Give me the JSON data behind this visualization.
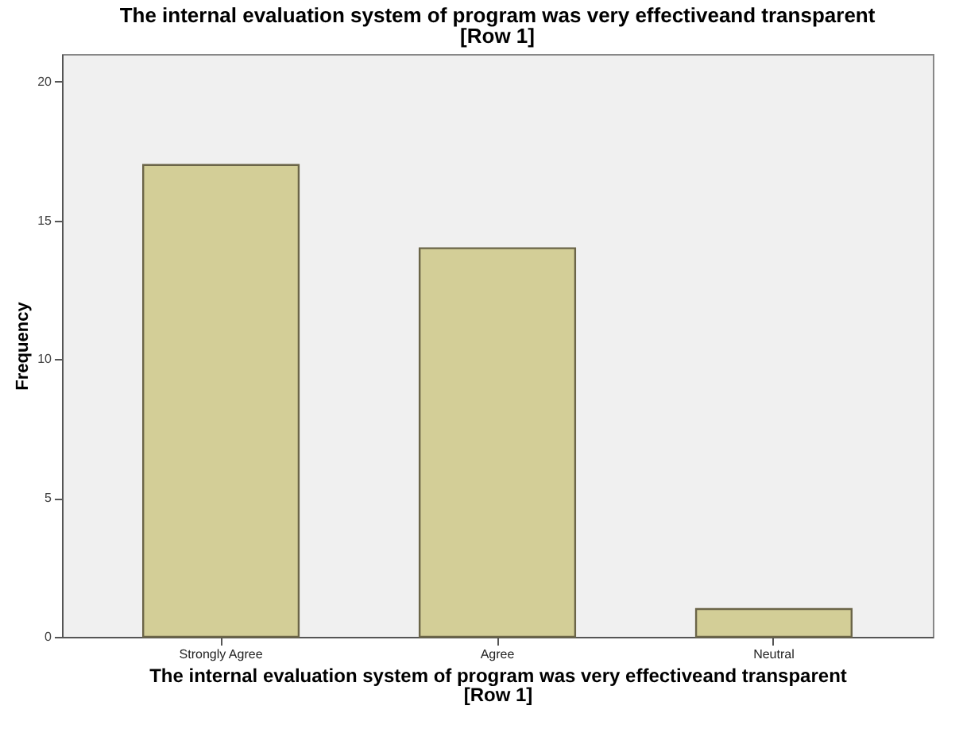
{
  "chart_data": {
    "type": "bar",
    "title": "The internal evaluation system of program was very effectiveand transparent\n[Row 1]",
    "xlabel": "The internal evaluation system of program was very effectiveand transparent\n[Row 1]",
    "ylabel": "Frequency",
    "categories": [
      "Strongly Agree",
      "Agree",
      "Neutral"
    ],
    "values": [
      17,
      14,
      1
    ],
    "color": "#d3ce97",
    "ylim": [
      0,
      21
    ],
    "yticks": [
      0,
      5,
      10,
      15,
      20
    ],
    "grid": false
  }
}
